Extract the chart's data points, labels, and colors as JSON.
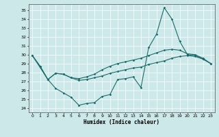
{
  "xlabel": "Humidex (Indice chaleur)",
  "bg_color": "#cce8e8",
  "line_color": "#1a6b6b",
  "xlim": [
    -0.5,
    23.5
  ],
  "ylim": [
    23.5,
    35.7
  ],
  "yticks": [
    24,
    25,
    26,
    27,
    28,
    29,
    30,
    31,
    32,
    33,
    34,
    35
  ],
  "xticks": [
    0,
    1,
    2,
    3,
    4,
    5,
    6,
    7,
    8,
    9,
    10,
    11,
    12,
    13,
    14,
    15,
    16,
    17,
    18,
    19,
    20,
    21,
    22,
    23
  ],
  "line1_x": [
    0,
    1,
    2,
    3,
    4,
    5,
    6,
    7,
    8,
    9,
    10,
    11,
    12,
    13,
    14,
    15,
    16,
    17,
    18,
    19,
    20,
    21,
    22,
    23
  ],
  "line1_y": [
    29.9,
    28.7,
    27.2,
    26.2,
    25.7,
    25.2,
    24.3,
    24.5,
    24.6,
    25.3,
    25.5,
    27.2,
    27.3,
    27.5,
    26.3,
    30.8,
    32.3,
    35.3,
    34.0,
    31.5,
    30.0,
    29.9,
    29.5,
    29.0
  ],
  "line2_x": [
    0,
    1,
    2,
    3,
    4,
    5,
    6,
    7,
    8,
    9,
    10,
    11,
    12,
    13,
    14,
    15,
    16,
    17,
    18,
    19,
    20,
    21,
    22,
    23
  ],
  "line2_y": [
    29.9,
    28.7,
    27.2,
    27.9,
    27.8,
    27.4,
    27.3,
    27.5,
    27.8,
    28.3,
    28.7,
    29.0,
    29.2,
    29.4,
    29.6,
    29.9,
    30.2,
    30.5,
    30.6,
    30.5,
    30.1,
    30.0,
    29.6,
    29.0
  ],
  "line3_x": [
    0,
    2,
    3,
    4,
    5,
    6,
    7,
    8,
    9,
    10,
    11,
    12,
    13,
    14,
    15,
    16,
    17,
    18,
    19,
    20,
    21,
    22,
    23
  ],
  "line3_y": [
    29.9,
    27.2,
    27.9,
    27.8,
    27.4,
    27.1,
    27.2,
    27.4,
    27.6,
    27.9,
    28.1,
    28.3,
    28.5,
    28.6,
    28.9,
    29.1,
    29.3,
    29.6,
    29.8,
    29.9,
    29.8,
    29.5,
    29.0
  ]
}
